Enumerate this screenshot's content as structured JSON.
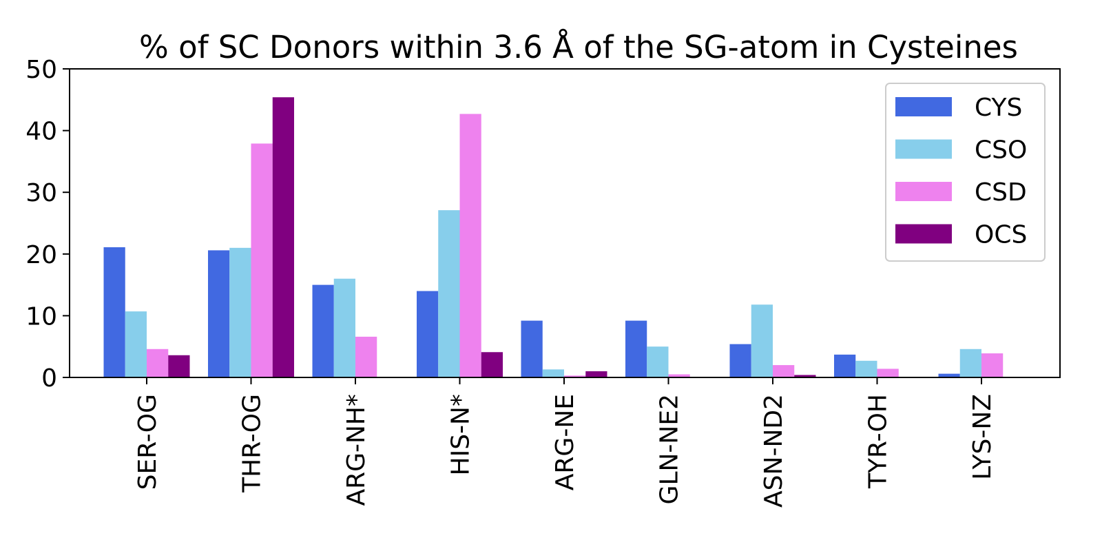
{
  "chart_data": {
    "type": "bar",
    "title": "% of SC Donors within 3.6 Å of the SG-atom in Cysteines",
    "xlabel": "",
    "ylabel": "",
    "categories": [
      "SER-OG",
      "THR-OG",
      "ARG-NH*",
      "HIS-N*",
      "ARG-NE",
      "GLN-NE2",
      "ASN-ND2",
      "TYR-OH",
      "LYS-NZ"
    ],
    "ylim": [
      0,
      50
    ],
    "yticks": [
      0,
      10,
      20,
      30,
      40,
      50
    ],
    "series": [
      {
        "name": "CYS",
        "color": "#4169e1",
        "values": [
          21.1,
          20.6,
          15.0,
          14.0,
          9.2,
          9.2,
          5.4,
          3.7,
          0.6
        ]
      },
      {
        "name": "CSO",
        "color": "#87ceeb",
        "values": [
          10.7,
          21.0,
          16.0,
          27.1,
          1.3,
          5.0,
          11.8,
          2.7,
          4.6
        ]
      },
      {
        "name": "CSD",
        "color": "#ee82ee",
        "values": [
          4.6,
          37.9,
          6.6,
          42.7,
          0.3,
          0.5,
          2.0,
          1.4,
          3.9
        ]
      },
      {
        "name": "OCS",
        "color": "#800080",
        "values": [
          3.6,
          45.4,
          0.0,
          4.1,
          1.0,
          0.0,
          0.4,
          0.0,
          0.0
        ]
      }
    ],
    "legend_position": "top-right",
    "grid": false
  }
}
